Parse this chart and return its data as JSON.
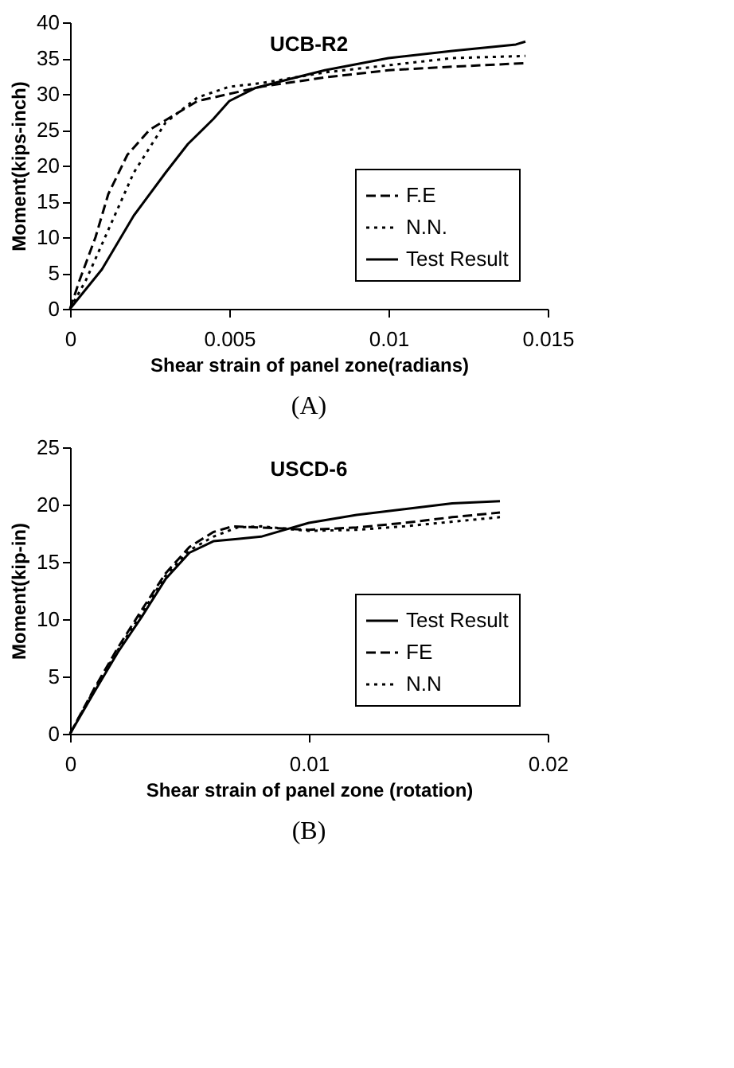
{
  "chart_data": [
    {
      "type": "line",
      "title": "UCB-R2",
      "xlabel": "Shear strain of panel zone(radians)",
      "ylabel": "Moment(kips-inch)",
      "annotations": [
        "(A)"
      ],
      "xlim": [
        0,
        0.015
      ],
      "xticks": [
        0,
        0.005,
        0.01,
        0.015
      ],
      "ylim": [
        0,
        40
      ],
      "yticks": [
        0,
        5,
        10,
        15,
        20,
        25,
        30,
        35,
        40
      ],
      "grid": false,
      "legend": "bottom right",
      "series": [
        {
          "name": "F.E",
          "color": "#000000",
          "line_style": "dashed",
          "x": [
            0,
            0.0003,
            0.0008,
            0.0012,
            0.0018,
            0.0025,
            0.004,
            0.006,
            0.008,
            0.01,
            0.012,
            0.0143
          ],
          "values": [
            0,
            4,
            10,
            16,
            21.5,
            25,
            29,
            31,
            32.3,
            33.3,
            33.8,
            34.3
          ]
        },
        {
          "name": "N.N.",
          "color": "#000000",
          "line_style": "dotted",
          "x": [
            0,
            0.0005,
            0.001,
            0.0015,
            0.002,
            0.003,
            0.004,
            0.005,
            0.006,
            0.008,
            0.01,
            0.012,
            0.0143
          ],
          "values": [
            0,
            4,
            9,
            14,
            19,
            26,
            29.5,
            31,
            31.5,
            33,
            34,
            35,
            35.3
          ]
        },
        {
          "name": "Test Result",
          "color": "#000000",
          "line_style": "solid",
          "x": [
            0,
            0.001,
            0.002,
            0.003,
            0.0037,
            0.0045,
            0.005,
            0.0058,
            0.007,
            0.008,
            0.01,
            0.012,
            0.014,
            0.0143
          ],
          "values": [
            0,
            5.5,
            13,
            19,
            23,
            26.5,
            29,
            30.8,
            32.2,
            33.3,
            35,
            36,
            36.9,
            37.3
          ]
        }
      ]
    },
    {
      "type": "line",
      "title": "USCD-6",
      "xlabel": "Shear strain of panel zone (rotation)",
      "ylabel": "Moment(kip-in)",
      "annotations": [
        "(B)"
      ],
      "xlim": [
        0,
        0.02
      ],
      "xticks": [
        0,
        0.01,
        0.02
      ],
      "ylim": [
        0,
        25
      ],
      "yticks": [
        0,
        5,
        10,
        15,
        20,
        25
      ],
      "grid": false,
      "legend": "bottom right",
      "series": [
        {
          "name": "Test Result",
          "color": "#000000",
          "line_style": "solid",
          "x": [
            0,
            0.001,
            0.002,
            0.003,
            0.004,
            0.005,
            0.006,
            0.007,
            0.008,
            0.009,
            0.01,
            0.012,
            0.014,
            0.016,
            0.018
          ],
          "values": [
            0,
            3.6,
            7.1,
            10.2,
            13.5,
            15.8,
            16.8,
            17,
            17.2,
            17.8,
            18.4,
            19.1,
            19.6,
            20.1,
            20.3
          ]
        },
        {
          "name": "FE",
          "color": "#000000",
          "line_style": "dashed",
          "x": [
            0,
            0.001,
            0.002,
            0.003,
            0.004,
            0.005,
            0.006,
            0.0068,
            0.008,
            0.01,
            0.012,
            0.014,
            0.016,
            0.018
          ],
          "values": [
            0,
            3.9,
            7.5,
            10.8,
            14,
            16.3,
            17.6,
            18.1,
            18,
            17.8,
            18,
            18.4,
            18.9,
            19.3
          ]
        },
        {
          "name": "N.N",
          "color": "#000000",
          "line_style": "dotted",
          "x": [
            0,
            0.001,
            0.002,
            0.003,
            0.004,
            0.005,
            0.006,
            0.007,
            0.008,
            0.01,
            0.012,
            0.014,
            0.016,
            0.018
          ],
          "values": [
            0,
            3.8,
            7.3,
            10.5,
            13.8,
            16,
            17.2,
            18,
            18.1,
            17.7,
            17.8,
            18.1,
            18.5,
            18.9
          ]
        }
      ]
    }
  ]
}
